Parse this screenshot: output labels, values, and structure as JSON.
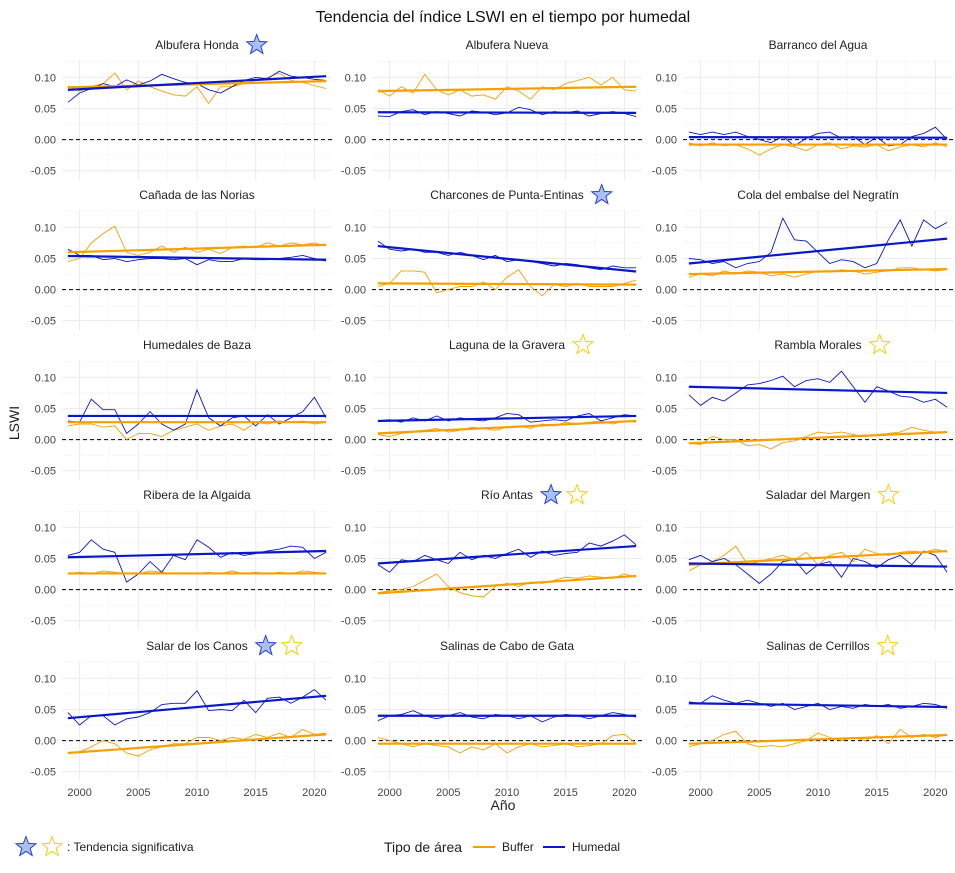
{
  "title": "Tendencia del índice LSWI en el tiempo por humedal",
  "xlabel": "Año",
  "ylabel": "LSWI",
  "colors": {
    "buffer": "#f5a000",
    "humedal": "#0a18c8",
    "star_blue": "#6d8ff0",
    "star_gold": "#f5d000",
    "grid": "#ebebeb"
  },
  "legend": {
    "significance_label": ": Tendencia significativa",
    "type_title": "Tipo de área",
    "buffer": "Buffer",
    "humedal": "Humedal"
  },
  "chart_data": {
    "type": "line",
    "xlim": [
      1998.5,
      2021.5
    ],
    "ylim": [
      -0.065,
      0.128
    ],
    "x_ticks": [
      2000,
      2005,
      2010,
      2015,
      2020
    ],
    "y_ticks": [
      -0.05,
      0.0,
      0.05,
      0.1
    ],
    "y_tick_labels": [
      "-0.05",
      "0.00",
      "0.05",
      "0.10"
    ],
    "reference_line": 0.0,
    "years": [
      1999,
      2000,
      2001,
      2002,
      2003,
      2004,
      2005,
      2006,
      2007,
      2008,
      2009,
      2010,
      2011,
      2012,
      2013,
      2014,
      2015,
      2016,
      2017,
      2018,
      2019,
      2020,
      2021
    ],
    "panels": [
      {
        "name": "Albufera Honda",
        "stars": [
          "humedal"
        ],
        "humedal": [
          0.06,
          0.075,
          0.082,
          0.09,
          0.085,
          0.096,
          0.088,
          0.094,
          0.105,
          0.098,
          0.092,
          0.09,
          0.08,
          0.075,
          0.085,
          0.095,
          0.1,
          0.098,
          0.11,
          0.102,
          0.1,
          0.097,
          0.095
        ],
        "buffer": [
          0.086,
          0.078,
          0.085,
          0.09,
          0.107,
          0.08,
          0.094,
          0.085,
          0.078,
          0.072,
          0.07,
          0.085,
          0.058,
          0.085,
          0.085,
          0.09,
          0.095,
          0.1,
          0.107,
          0.095,
          0.092,
          0.087,
          0.082
        ],
        "trend_humedal": [
          0.08,
          0.102
        ],
        "trend_buffer": [
          0.084,
          0.094
        ]
      },
      {
        "name": "Albufera Nueva",
        "stars": [],
        "humedal": [
          0.038,
          0.037,
          0.045,
          0.048,
          0.04,
          0.045,
          0.042,
          0.038,
          0.046,
          0.044,
          0.04,
          0.043,
          0.052,
          0.048,
          0.04,
          0.045,
          0.043,
          0.046,
          0.038,
          0.042,
          0.045,
          0.042,
          0.037
        ],
        "buffer": [
          0.08,
          0.07,
          0.085,
          0.075,
          0.105,
          0.08,
          0.072,
          0.08,
          0.07,
          0.072,
          0.065,
          0.085,
          0.078,
          0.065,
          0.085,
          0.08,
          0.09,
          0.095,
          0.1,
          0.088,
          0.1,
          0.08,
          0.078
        ],
        "trend_humedal": [
          0.044,
          0.043
        ],
        "trend_buffer": [
          0.078,
          0.085
        ]
      },
      {
        "name": "Barranco del Agua",
        "stars": [],
        "humedal": [
          0.012,
          0.008,
          0.012,
          0.008,
          0.012,
          0.005,
          0.0,
          -0.005,
          0.005,
          -0.01,
          0.002,
          0.01,
          0.012,
          0.002,
          0.005,
          -0.008,
          0.004,
          -0.01,
          -0.008,
          0.005,
          0.01,
          0.02,
          0.0
        ],
        "buffer": [
          -0.005,
          -0.01,
          -0.005,
          -0.01,
          -0.008,
          -0.015,
          -0.025,
          -0.015,
          -0.008,
          -0.012,
          -0.018,
          -0.008,
          -0.005,
          -0.015,
          -0.01,
          -0.012,
          -0.008,
          -0.018,
          -0.012,
          -0.008,
          -0.012,
          -0.005,
          -0.012
        ],
        "trend_humedal": [
          0.004,
          0.003
        ],
        "trend_buffer": [
          -0.008,
          -0.008
        ]
      },
      {
        "name": "Cañada de las Norias",
        "stars": [],
        "humedal": [
          0.065,
          0.055,
          0.055,
          0.048,
          0.05,
          0.045,
          0.048,
          0.05,
          0.05,
          0.048,
          0.05,
          0.04,
          0.048,
          0.045,
          0.045,
          0.05,
          0.048,
          0.048,
          0.05,
          0.052,
          0.055,
          0.05,
          0.046
        ],
        "buffer": [
          0.045,
          0.05,
          0.075,
          0.09,
          0.102,
          0.06,
          0.055,
          0.06,
          0.07,
          0.06,
          0.068,
          0.06,
          0.065,
          0.058,
          0.068,
          0.07,
          0.068,
          0.075,
          0.07,
          0.075,
          0.072,
          0.075,
          0.07
        ],
        "trend_humedal": [
          0.054,
          0.048
        ],
        "trend_buffer": [
          0.06,
          0.072
        ]
      },
      {
        "name": "Charcones de Punta-Entinas",
        "stars": [
          "humedal"
        ],
        "humedal": [
          0.078,
          0.065,
          0.062,
          0.065,
          0.06,
          0.06,
          0.055,
          0.06,
          0.055,
          0.048,
          0.055,
          0.045,
          0.048,
          0.045,
          0.042,
          0.038,
          0.042,
          0.04,
          0.035,
          0.032,
          0.038,
          0.035,
          0.035
        ],
        "buffer": [
          0.005,
          0.01,
          0.03,
          0.03,
          0.028,
          -0.005,
          0.0,
          0.005,
          0.005,
          0.012,
          0.0,
          0.02,
          0.032,
          0.005,
          -0.01,
          0.008,
          0.005,
          0.01,
          0.005,
          0.005,
          0.005,
          0.01,
          0.015
        ],
        "trend_humedal": [
          0.07,
          0.029
        ],
        "trend_buffer": [
          0.01,
          0.008
        ]
      },
      {
        "name": "Cola del embalse del Negratín",
        "stars": [],
        "humedal": [
          0.05,
          0.048,
          0.042,
          0.045,
          0.035,
          0.042,
          0.045,
          0.06,
          0.115,
          0.08,
          0.078,
          0.06,
          0.042,
          0.048,
          0.045,
          0.035,
          0.042,
          0.08,
          0.112,
          0.07,
          0.112,
          0.098,
          0.108
        ],
        "buffer": [
          0.02,
          0.025,
          0.022,
          0.03,
          0.025,
          0.03,
          0.028,
          0.022,
          0.025,
          0.02,
          0.025,
          0.03,
          0.028,
          0.032,
          0.03,
          0.025,
          0.028,
          0.03,
          0.035,
          0.035,
          0.032,
          0.03,
          0.032
        ],
        "trend_humedal": [
          0.042,
          0.082
        ],
        "trend_buffer": [
          0.025,
          0.033
        ]
      },
      {
        "name": "Humedales de Baza",
        "stars": [],
        "humedal": [
          0.03,
          0.028,
          0.065,
          0.048,
          0.048,
          0.01,
          0.025,
          0.045,
          0.025,
          0.015,
          0.025,
          0.08,
          0.035,
          0.022,
          0.035,
          0.038,
          0.022,
          0.04,
          0.025,
          0.035,
          0.045,
          0.068,
          0.035
        ],
        "buffer": [
          0.022,
          0.025,
          0.025,
          0.02,
          0.022,
          0.0,
          0.01,
          0.01,
          0.005,
          0.015,
          0.02,
          0.025,
          0.015,
          0.022,
          0.025,
          0.015,
          0.028,
          0.025,
          0.03,
          0.028,
          0.03,
          0.025,
          0.028
        ],
        "trend_humedal": [
          0.038,
          0.038
        ],
        "trend_buffer": [
          0.028,
          0.028
        ]
      },
      {
        "name": "Laguna de la Gravera",
        "stars": [
          "buffer"
        ],
        "humedal": [
          0.03,
          0.032,
          0.028,
          0.035,
          0.03,
          0.038,
          0.03,
          0.035,
          0.032,
          0.03,
          0.035,
          0.042,
          0.04,
          0.028,
          0.03,
          0.032,
          0.03,
          0.038,
          0.042,
          0.03,
          0.035,
          0.04,
          0.038
        ],
        "buffer": [
          0.008,
          0.005,
          0.01,
          0.012,
          0.015,
          0.018,
          0.012,
          0.015,
          0.02,
          0.018,
          0.015,
          0.02,
          0.022,
          0.018,
          0.025,
          0.022,
          0.028,
          0.025,
          0.028,
          0.03,
          0.025,
          0.03,
          0.028
        ],
        "trend_humedal": [
          0.03,
          0.038
        ],
        "trend_buffer": [
          0.01,
          0.03
        ]
      },
      {
        "name": "Rambla Morales",
        "stars": [
          "buffer"
        ],
        "humedal": [
          0.072,
          0.055,
          0.068,
          0.062,
          0.075,
          0.088,
          0.09,
          0.095,
          0.102,
          0.085,
          0.095,
          0.098,
          0.092,
          0.11,
          0.085,
          0.06,
          0.085,
          0.078,
          0.07,
          0.068,
          0.06,
          0.065,
          0.052
        ],
        "buffer": [
          -0.005,
          -0.008,
          0.005,
          0.0,
          0.0,
          -0.01,
          -0.008,
          -0.015,
          -0.005,
          -0.002,
          0.005,
          0.012,
          0.01,
          0.012,
          0.008,
          0.005,
          0.008,
          0.01,
          0.012,
          0.02,
          0.015,
          0.012,
          0.012
        ],
        "trend_humedal": [
          0.085,
          0.075
        ],
        "trend_buffer": [
          -0.006,
          0.012
        ]
      },
      {
        "name": "Ribera de la Algaida",
        "stars": [],
        "humedal": [
          0.055,
          0.06,
          0.08,
          0.065,
          0.06,
          0.012,
          0.025,
          0.045,
          0.028,
          0.055,
          0.048,
          0.08,
          0.068,
          0.052,
          0.06,
          0.055,
          0.058,
          0.062,
          0.065,
          0.07,
          0.068,
          0.05,
          0.06
        ],
        "buffer": [
          0.025,
          0.028,
          0.025,
          0.03,
          0.028,
          0.025,
          0.025,
          0.03,
          0.028,
          0.025,
          0.025,
          0.025,
          0.028,
          0.025,
          0.03,
          0.025,
          0.028,
          0.025,
          0.028,
          0.025,
          0.03,
          0.028,
          0.025
        ],
        "trend_humedal": [
          0.052,
          0.062
        ],
        "trend_buffer": [
          0.026,
          0.026
        ]
      },
      {
        "name": "Río Antas",
        "stars": [
          "humedal",
          "buffer"
        ],
        "humedal": [
          0.04,
          0.028,
          0.048,
          0.045,
          0.055,
          0.048,
          0.042,
          0.06,
          0.048,
          0.055,
          0.05,
          0.058,
          0.065,
          0.052,
          0.062,
          0.055,
          0.058,
          0.06,
          0.075,
          0.07,
          0.078,
          0.088,
          0.072
        ],
        "buffer": [
          -0.005,
          -0.002,
          0.0,
          0.005,
          0.015,
          0.025,
          0.005,
          -0.005,
          -0.01,
          -0.012,
          0.005,
          0.01,
          0.005,
          0.012,
          0.01,
          0.015,
          0.02,
          0.018,
          0.022,
          0.02,
          0.018,
          0.025,
          0.02
        ],
        "trend_humedal": [
          0.042,
          0.07
        ],
        "trend_buffer": [
          -0.006,
          0.022
        ]
      },
      {
        "name": "Saladar del Margen",
        "stars": [
          "buffer"
        ],
        "humedal": [
          0.048,
          0.055,
          0.045,
          0.05,
          0.04,
          0.025,
          0.01,
          0.025,
          0.045,
          0.048,
          0.025,
          0.04,
          0.045,
          0.02,
          0.05,
          0.045,
          0.035,
          0.048,
          0.055,
          0.04,
          0.062,
          0.055,
          0.028
        ],
        "buffer": [
          0.03,
          0.04,
          0.045,
          0.055,
          0.07,
          0.04,
          0.045,
          0.05,
          0.055,
          0.048,
          0.06,
          0.04,
          0.055,
          0.06,
          0.045,
          0.065,
          0.058,
          0.055,
          0.06,
          0.062,
          0.06,
          0.065,
          0.06
        ],
        "trend_humedal": [
          0.042,
          0.037
        ],
        "trend_buffer": [
          0.04,
          0.062
        ]
      },
      {
        "name": "Salar de los Canos",
        "stars": [
          "humedal",
          "buffer"
        ],
        "humedal": [
          0.045,
          0.025,
          0.04,
          0.04,
          0.025,
          0.035,
          0.038,
          0.045,
          0.058,
          0.06,
          0.06,
          0.08,
          0.048,
          0.05,
          0.048,
          0.065,
          0.045,
          0.068,
          0.07,
          0.06,
          0.07,
          0.082,
          0.065
        ],
        "buffer": [
          -0.02,
          -0.018,
          -0.01,
          0.0,
          -0.005,
          -0.02,
          -0.025,
          -0.015,
          -0.01,
          -0.005,
          -0.005,
          0.005,
          0.005,
          0.0,
          0.005,
          0.002,
          0.01,
          0.005,
          0.012,
          0.005,
          0.018,
          0.01,
          0.012
        ],
        "trend_humedal": [
          0.036,
          0.072
        ],
        "trend_buffer": [
          -0.02,
          0.01
        ]
      },
      {
        "name": "Salinas de Cabo de Gata",
        "stars": [],
        "humedal": [
          0.032,
          0.04,
          0.042,
          0.048,
          0.04,
          0.035,
          0.04,
          0.045,
          0.038,
          0.035,
          0.042,
          0.04,
          0.035,
          0.04,
          0.03,
          0.038,
          0.042,
          0.04,
          0.035,
          0.04,
          0.045,
          0.042,
          0.038
        ],
        "buffer": [
          0.005,
          0.0,
          -0.005,
          -0.01,
          -0.005,
          -0.008,
          -0.01,
          -0.02,
          -0.01,
          -0.015,
          -0.005,
          -0.02,
          -0.01,
          -0.005,
          -0.01,
          -0.008,
          -0.005,
          -0.01,
          -0.008,
          -0.005,
          0.008,
          0.01,
          -0.005
        ],
        "trend_humedal": [
          0.04,
          0.04
        ],
        "trend_buffer": [
          -0.005,
          -0.005
        ]
      },
      {
        "name": "Salinas de Cerrillos",
        "stars": [
          "buffer"
        ],
        "humedal": [
          0.062,
          0.06,
          0.072,
          0.065,
          0.06,
          0.065,
          0.06,
          0.055,
          0.06,
          0.05,
          0.055,
          0.06,
          0.05,
          0.055,
          0.052,
          0.058,
          0.055,
          0.058,
          0.052,
          0.055,
          0.06,
          0.058,
          0.052
        ],
        "buffer": [
          -0.01,
          -0.005,
          0.0,
          0.01,
          0.015,
          -0.005,
          -0.01,
          -0.008,
          -0.01,
          -0.005,
          0.0,
          0.012,
          0.005,
          0.0,
          0.005,
          0.0,
          0.008,
          -0.005,
          0.018,
          0.005,
          0.01,
          0.005,
          0.01
        ],
        "trend_humedal": [
          0.06,
          0.054
        ],
        "trend_buffer": [
          -0.005,
          0.009
        ]
      }
    ]
  }
}
